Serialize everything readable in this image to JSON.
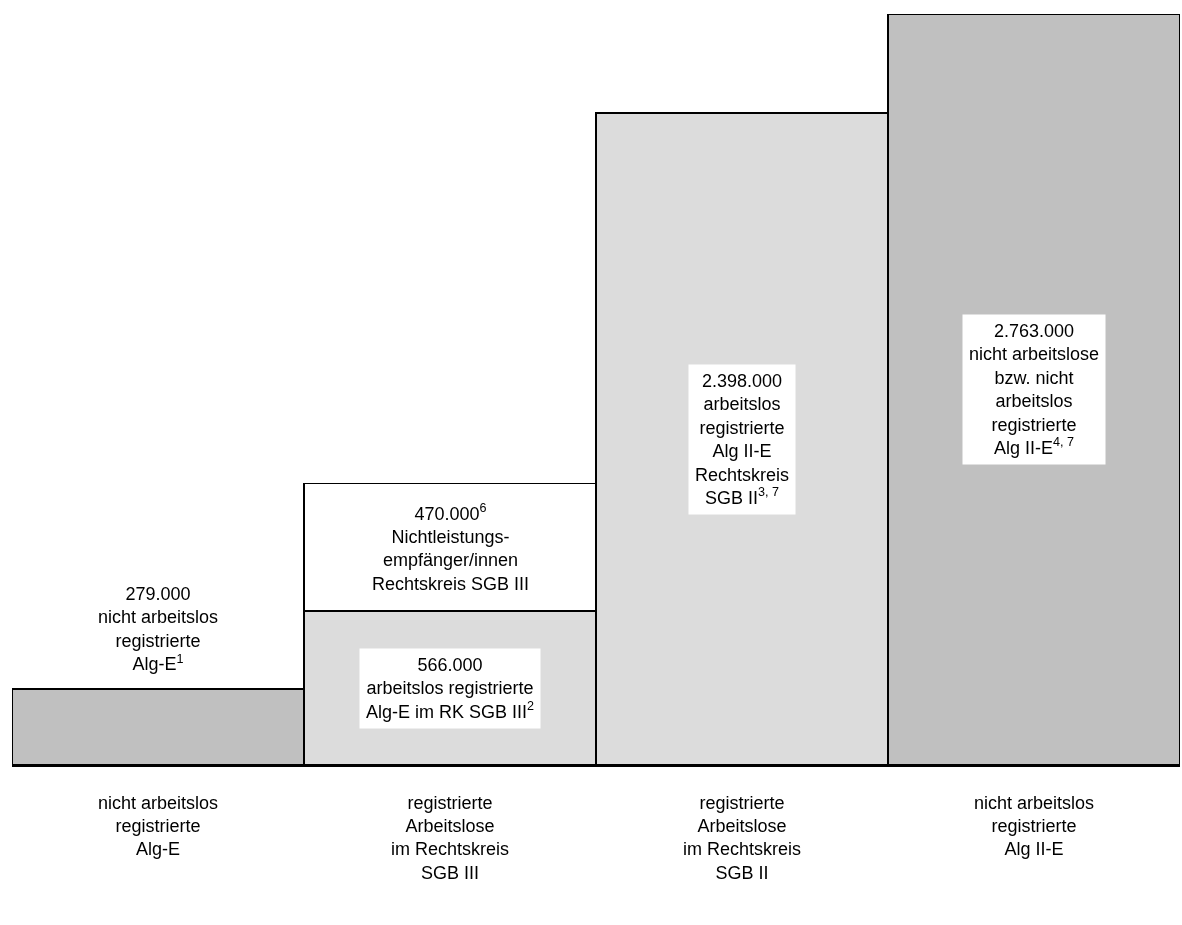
{
  "chart_data": {
    "type": "bar",
    "stacked": true,
    "categories": [
      "nicht arbeitslos\nregistrierte\nAlg-E",
      "registrierte\nArbeitslose\nim Rechtskreis\nSGB III",
      "registrierte\nArbeitslose\nim Rechtskreis\nSGB II",
      "nicht arbeitslos\nregistrierte\nAlg II-E"
    ],
    "series": [
      {
        "colors": [
          "#c0c0c0",
          "#dcdcdc",
          "#dcdcdc",
          "#c0c0c0"
        ],
        "values": [
          279000,
          566000,
          2398000,
          2763000
        ],
        "value_labels": [
          "279.000\nnicht arbeitslos\nregistrierte\nAlg-E$^{1}$",
          "566.000\narbeitslos registrierte\nAlg-E im RK SGB III$^{2}$",
          "2.398.000\narbeitslos\nregistrierte\nAlg II-E\nRechtskreis\nSGB II$^{3, 7}$",
          "2.763.000\nnicht arbeitslose\nbzw. nicht\narbeitslos\nregistrierte\nAlg II-E$^{4, 7}$"
        ]
      },
      {
        "color": "#ffffff",
        "values": [
          null,
          470000,
          null,
          null
        ],
        "value_labels": [
          null,
          "470.000$^{6}$\nNichtleistungs-\nempfänger/innen\nRechtskreis SGB III",
          null,
          null
        ]
      }
    ]
  }
}
